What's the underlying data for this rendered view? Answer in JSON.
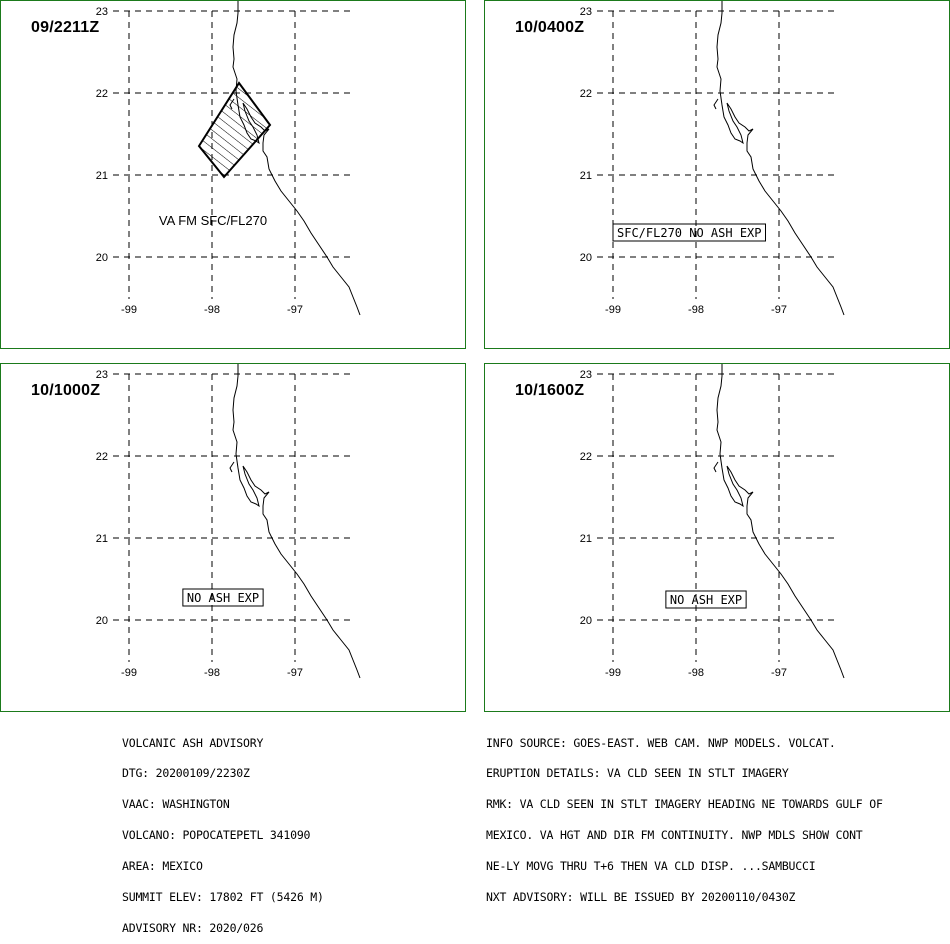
{
  "panels": [
    {
      "time": "09/2211Z",
      "label": "VA FM SFC/FL270",
      "label_style": "plain",
      "has_ash": true
    },
    {
      "time": "10/0400Z",
      "label": "SFC/FL270 NO ASH EXP",
      "label_style": "boxed",
      "has_ash": false
    },
    {
      "time": "10/1000Z",
      "label": "NO ASH EXP",
      "label_style": "boxed",
      "has_ash": false
    },
    {
      "time": "10/1600Z",
      "label": "NO ASH EXP",
      "label_style": "boxed",
      "has_ash": false
    }
  ],
  "map": {
    "lat_labels": [
      "23",
      "22",
      "21",
      "20"
    ],
    "lon_labels": [
      "-99",
      "-98",
      "-97"
    ]
  },
  "advisory_left": [
    "VOLCANIC ASH ADVISORY",
    "DTG: 20200109/2230Z",
    "VAAC: WASHINGTON",
    "VOLCANO: POPOCATEPETL 341090",
    "AREA: MEXICO",
    "SUMMIT ELEV: 17802 FT (5426 M)",
    "ADVISORY NR: 2020/026"
  ],
  "advisory_right": [
    "INFO SOURCE: GOES-EAST. WEB CAM. NWP MODELS. VOLCAT.",
    "ERUPTION DETAILS: VA CLD SEEN IN STLT IMAGERY",
    "RMK: VA CLD SEEN IN STLT IMAGERY HEADING NE TOWARDS GULF OF",
    "MEXICO. VA HGT AND DIR FM CONTINUITY. NWP MDLS SHOW CONT",
    "NE-LY MOVG THRU T+6 THEN VA CLD DISP. ...SAMBUCCI",
    "NXT ADVISORY: WILL BE ISSUED BY 20200110/0430Z"
  ],
  "colors": {
    "panel_border": "#1b7a1b",
    "lines": "#000000"
  }
}
